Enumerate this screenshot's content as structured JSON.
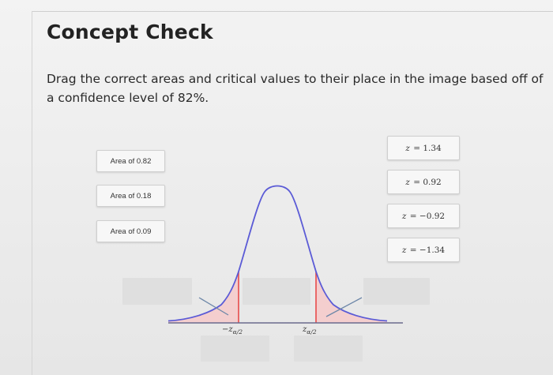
{
  "title": "Concept Check",
  "instructions": "Drag the correct areas and critical values to their place in the image based off of a confidence level of 82%.",
  "area_chips": [
    {
      "label": "Area of 0.82"
    },
    {
      "label": "Area of 0.18"
    },
    {
      "label": "Area of 0.09"
    }
  ],
  "z_chips": [
    {
      "prefix": "z",
      "value": "= 1.34"
    },
    {
      "prefix": "z",
      "value": "= 0.92"
    },
    {
      "prefix": "z",
      "value": "= −0.92"
    },
    {
      "prefix": "z",
      "value": "= −1.34"
    }
  ],
  "axis_labels": {
    "left": {
      "main": "−z",
      "sub": "α/2"
    },
    "right": {
      "main": "z",
      "sub": "α/2"
    }
  },
  "colors": {
    "curve": "#5b5bd6",
    "tail_fill": "#f6c9c9",
    "critical_line": "#e84b4b",
    "axis": "#6a6a8e",
    "pointer": "#6d87a8"
  }
}
